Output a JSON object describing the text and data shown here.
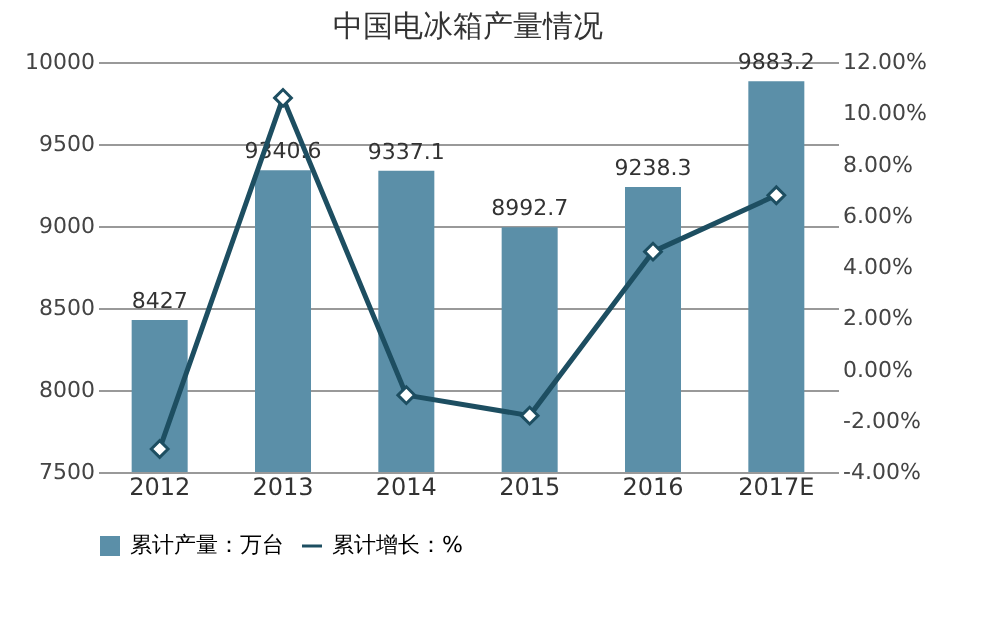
{
  "chart_data": {
    "type": "bar",
    "title": "中国电冰箱产量情况",
    "categories": [
      "2012",
      "2013",
      "2014",
      "2015",
      "2016",
      "2017E"
    ],
    "series": [
      {
        "name": "累计产量：万台",
        "color": "#5b8fa8",
        "values": [
          8427,
          9340.6,
          9337.1,
          8992.7,
          9238.3,
          9883.2
        ],
        "value_labels": [
          "8427",
          "9340.6",
          "9337.1",
          "8992.7",
          "9238.3",
          "9883.2"
        ]
      },
      {
        "name": "累计增长：%",
        "type": "line",
        "axis": "y2",
        "color": "#1d4e61",
        "marker": "diamond",
        "values": [
          -3.1,
          10.6,
          -1.0,
          -1.8,
          4.6,
          6.8
        ]
      }
    ],
    "ylim": [
      7500,
      10000
    ],
    "yticks": [
      7500,
      8000,
      8500,
      9000,
      9500,
      10000
    ],
    "y2lim": [
      -4,
      12
    ],
    "y2ticks": [
      {
        "value": -4,
        "label": "-4.00%"
      },
      {
        "value": -2,
        "label": "-2.00%"
      },
      {
        "value": 0,
        "label": "0.00%"
      },
      {
        "value": 2,
        "label": "2.00%"
      },
      {
        "value": 4,
        "label": "4.00%"
      },
      {
        "value": 6,
        "label": "6.00%"
      },
      {
        "value": 8,
        "label": "8.00%"
      },
      {
        "value": 10,
        "label": "10.00%"
      },
      {
        "value": 12,
        "label": "12.00%"
      }
    ],
    "grid": "y",
    "legend": "bottom"
  }
}
